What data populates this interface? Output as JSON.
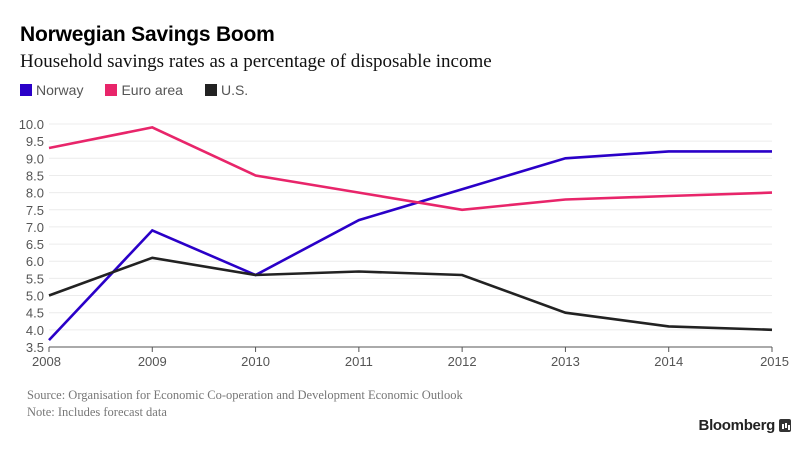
{
  "header": {
    "title": "Norwegian Savings Boom",
    "subtitle": "Household savings rates as a percentage of disposable income"
  },
  "legend": [
    {
      "label": "Norway",
      "color": "#2a00c8"
    },
    {
      "label": "Euro area",
      "color": "#e8256a"
    },
    {
      "label": "U.S.",
      "color": "#222222"
    }
  ],
  "footer": {
    "source": "Source: Organisation for Economic Co-operation and Development Economic Outlook",
    "note": "Note: Includes forecast data",
    "brand": "Bloomberg"
  },
  "chart_data": {
    "type": "line",
    "title": "Norwegian Savings Boom",
    "subtitle": "Household savings rates as a percentage of disposable income",
    "xlabel": "",
    "ylabel": "",
    "x": [
      "2008",
      "2009",
      "2010",
      "2011",
      "2012",
      "2013",
      "2014",
      "2015"
    ],
    "ylim": [
      3.5,
      10.0
    ],
    "yticks": [
      "3.5",
      "4.0",
      "4.5",
      "5.0",
      "5.5",
      "6.0",
      "6.5",
      "7.0",
      "7.5",
      "8.0",
      "8.5",
      "9.0",
      "9.5",
      "10.0"
    ],
    "grid": true,
    "legend_position": "top-left",
    "series": [
      {
        "name": "Norway",
        "color": "#2a00c8",
        "values": [
          3.7,
          6.9,
          5.6,
          7.2,
          8.1,
          9.0,
          9.2,
          9.2
        ]
      },
      {
        "name": "Euro area",
        "color": "#e8256a",
        "values": [
          9.3,
          9.9,
          8.5,
          8.0,
          7.5,
          7.8,
          7.9,
          8.0
        ]
      },
      {
        "name": "U.S.",
        "color": "#222222",
        "values": [
          5.0,
          6.1,
          5.6,
          5.7,
          5.6,
          4.5,
          4.1,
          4.0
        ]
      }
    ]
  }
}
